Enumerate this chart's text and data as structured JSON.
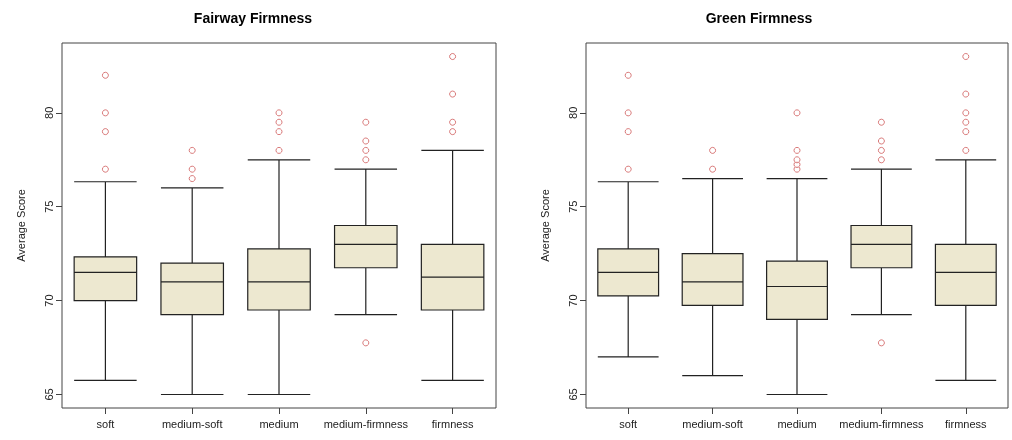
{
  "chart_data": [
    {
      "type": "box",
      "title": "Fairway Firmness",
      "ylabel": "Average Score",
      "categories": [
        "soft",
        "medium-soft",
        "medium",
        "medium-firmness",
        "firmness"
      ],
      "ylim": [
        64.28,
        83.72
      ],
      "yticks": [
        65,
        70,
        75,
        80
      ],
      "grid": false,
      "series": [
        {
          "color": "#ede8d0",
          "boxes": [
            {
              "low": 65.75,
              "q1": 70.0,
              "median": 71.5,
              "q3": 72.33,
              "high": 76.33,
              "outliers": [
                77,
                79,
                80,
                82
              ]
            },
            {
              "low": 65.0,
              "q1": 69.25,
              "median": 71.0,
              "q3": 72.0,
              "high": 76.0,
              "outliers": [
                76.5,
                77,
                78
              ]
            },
            {
              "low": 65.0,
              "q1": 69.5,
              "median": 71.0,
              "q3": 72.75,
              "high": 77.5,
              "outliers": [
                78,
                79,
                79.5,
                80
              ]
            },
            {
              "low": 69.25,
              "q1": 71.75,
              "median": 73.0,
              "q3": 74.0,
              "high": 77.0,
              "outliers": [
                67.75,
                77.5,
                78,
                78.5,
                79.5
              ]
            },
            {
              "low": 65.75,
              "q1": 69.5,
              "median": 71.25,
              "q3": 73.0,
              "high": 78.0,
              "outliers": [
                79,
                79.5,
                81,
                83
              ]
            }
          ]
        }
      ]
    },
    {
      "type": "box",
      "title": "Green Firmness",
      "ylabel": "Average Score",
      "categories": [
        "soft",
        "medium-soft",
        "medium",
        "medium-firmness",
        "firmness"
      ],
      "ylim": [
        64.28,
        83.72
      ],
      "yticks": [
        65,
        70,
        75,
        80
      ],
      "grid": false,
      "series": [
        {
          "color": "#ede8d0",
          "boxes": [
            {
              "low": 67.0,
              "q1": 70.25,
              "median": 71.5,
              "q3": 72.75,
              "high": 76.33,
              "outliers": [
                77,
                79,
                80,
                82
              ]
            },
            {
              "low": 66.0,
              "q1": 69.75,
              "median": 71.0,
              "q3": 72.5,
              "high": 76.5,
              "outliers": [
                77,
                78
              ]
            },
            {
              "low": 65.0,
              "q1": 69.0,
              "median": 70.75,
              "q3": 72.1,
              "high": 76.5,
              "outliers": [
                77,
                77.25,
                77.5,
                78,
                80
              ]
            },
            {
              "low": 69.25,
              "q1": 71.75,
              "median": 73.0,
              "q3": 74.0,
              "high": 77.0,
              "outliers": [
                67.75,
                77.5,
                78,
                78.5,
                79.5
              ]
            },
            {
              "low": 65.75,
              "q1": 69.75,
              "median": 71.5,
              "q3": 73.0,
              "high": 77.5,
              "outliers": [
                78,
                79,
                79.5,
                80,
                81,
                83
              ]
            }
          ]
        }
      ]
    }
  ]
}
